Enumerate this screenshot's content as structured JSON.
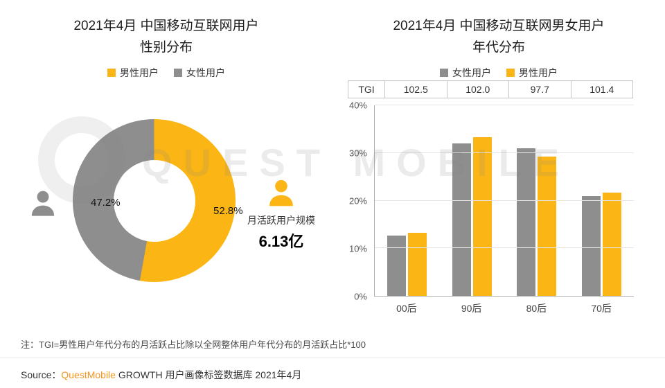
{
  "page": {
    "note": "注：TGI=男性用户年代分布的月活跃占比除以全网整体用户年代分布的月活跃占比*100",
    "source_prefix": "Source：",
    "source_brand": "QuestMobile",
    "source_suffix": " GROWTH 用户画像标签数据库 2021年4月",
    "watermark": "QUEST MOBILE"
  },
  "colors": {
    "male": "#FBB616",
    "female": "#8E8E8E",
    "brand_orange": "#F7941D"
  },
  "chart_data": [
    {
      "type": "pie",
      "donut": true,
      "title_line1": "2021年4月 中国移动互联网用户",
      "title_line2": "性别分布",
      "legend": [
        "男性用户",
        "女性用户"
      ],
      "slices": [
        {
          "label": "男性用户",
          "value": 52.8,
          "display": "52.8%",
          "color_key": "male"
        },
        {
          "label": "女性用户",
          "value": 47.2,
          "display": "47.2%",
          "color_key": "female"
        }
      ],
      "annotation_label": "月活跃用户规模",
      "annotation_value": "6.13亿"
    },
    {
      "type": "bar",
      "title_line1": "2021年4月 中国移动互联网男女用户",
      "title_line2": "年代分布",
      "legend": [
        "女性用户",
        "男性用户"
      ],
      "legend_position": "top",
      "tgi_label": "TGI",
      "tgi_values": [
        "102.5",
        "102.0",
        "97.7",
        "101.4"
      ],
      "categories": [
        "00后",
        "90后",
        "80后",
        "70后"
      ],
      "series": [
        {
          "name": "女性用户",
          "color_key": "female",
          "values": [
            12.6,
            32.0,
            31.0,
            21.0
          ]
        },
        {
          "name": "男性用户",
          "color_key": "male",
          "values": [
            13.3,
            33.3,
            29.3,
            21.7
          ]
        }
      ],
      "ylim": [
        0,
        40
      ],
      "yticks": [
        "0%",
        "10%",
        "20%",
        "30%",
        "40%"
      ],
      "grid": true
    }
  ]
}
